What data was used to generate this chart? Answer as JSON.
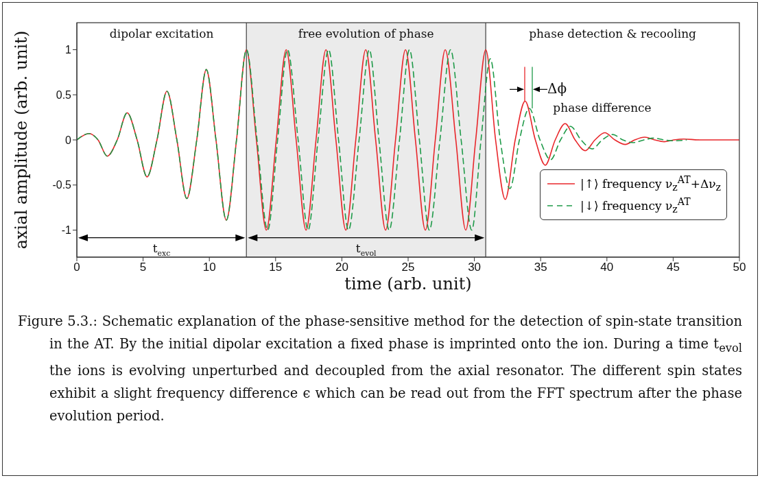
{
  "chart_data": {
    "type": "line",
    "xlabel": "time (arb. unit)",
    "ylabel": "axial amplitude (arb. unit)",
    "xlim": [
      0,
      50
    ],
    "xticks": [
      0,
      5,
      10,
      15,
      20,
      25,
      30,
      35,
      40,
      45,
      50
    ],
    "ylim": [
      -1.3,
      1.3
    ],
    "yticks": [
      -1,
      -0.5,
      0,
      0.5,
      1
    ],
    "grid": false,
    "legend": "right",
    "marker": "none",
    "series": [
      {
        "name": "|↑⟩ frequency ν$_{z}$$^{AT}$+Δν$_{z}$",
        "color": "#e8262a",
        "line_style": "solid",
        "x": [
          0,
          0.93,
          1.6,
          2.3,
          3.05,
          3.8,
          4.55,
          5.3,
          6.05,
          6.8,
          7.55,
          8.3,
          9.05,
          9.77,
          10.5,
          11.28,
          12.05,
          12.8,
          13.55,
          14.3,
          15.05,
          15.8,
          16.55,
          17.3,
          18.05,
          18.8,
          19.55,
          20.3,
          21.05,
          21.8,
          22.55,
          23.3,
          24.05,
          24.8,
          25.55,
          26.3,
          27.05,
          27.8,
          28.6,
          29.35,
          30.1,
          30.86,
          31.6,
          32.33,
          33.08,
          33.83,
          34.6,
          35.35,
          36.1,
          36.85,
          37.6,
          38.37,
          39.1,
          39.84,
          40.6,
          41.39,
          42.1,
          42.86,
          43.6,
          44.32,
          45.05,
          45.79,
          47,
          50
        ],
        "values": [
          0,
          0.07,
          0,
          -0.18,
          0,
          0.3,
          0,
          -0.41,
          0,
          0.54,
          0,
          -0.65,
          0,
          0.78,
          0,
          -0.89,
          0,
          1,
          0,
          -1,
          0,
          1,
          0,
          -1,
          0,
          1,
          0,
          -1,
          0,
          1,
          0,
          -1,
          0,
          1,
          0,
          -1,
          0,
          1,
          0,
          -1,
          0,
          1,
          0,
          -0.66,
          0,
          0.43,
          0,
          -0.28,
          0,
          0.18,
          0,
          -0.12,
          0,
          0.08,
          0,
          -0.05,
          0,
          0.03,
          0,
          -0.02,
          0,
          0.01,
          0,
          0
        ]
      },
      {
        "name": "|↓⟩ frequency ν$_{z}$$^{AT}$",
        "color": "#1e9a48",
        "line_style": "dashed",
        "x": [
          0,
          0.93,
          1.6,
          2.3,
          3.05,
          3.8,
          4.55,
          5.3,
          6.05,
          6.8,
          7.55,
          8.3,
          9.05,
          9.77,
          10.5,
          11.28,
          12.05,
          12.8,
          13.6,
          14.4,
          15.15,
          15.9,
          16.7,
          17.45,
          18.2,
          19,
          19.75,
          20.5,
          21.3,
          22.07,
          22.8,
          23.57,
          24.35,
          25.1,
          25.85,
          26.6,
          27.4,
          28.2,
          29,
          29.8,
          30.5,
          31.2,
          31.95,
          32.68,
          33.4,
          34.14,
          34.95,
          35.75,
          36.5,
          37.25,
          38.05,
          38.89,
          39.65,
          40.44,
          41.2,
          41.99,
          42.8,
          43.55,
          44.3,
          45.1,
          46
        ],
        "values": [
          0,
          0.07,
          0,
          -0.18,
          0,
          0.3,
          0,
          -0.41,
          0,
          0.54,
          0,
          -0.65,
          0,
          0.78,
          0,
          -0.89,
          0,
          1,
          0,
          -1,
          0,
          1,
          0,
          -1,
          0,
          1,
          0,
          -1,
          0,
          1,
          0,
          -1,
          0,
          1,
          0,
          -1,
          0,
          1,
          0,
          -1,
          0,
          0.9,
          0,
          -0.54,
          0,
          0.35,
          0,
          -0.22,
          0,
          0.15,
          0,
          -0.1,
          0,
          0.06,
          0,
          -0.03,
          0,
          0.02,
          0,
          -0.01,
          0
        ]
      }
    ],
    "bands": [
      {
        "axis": "x",
        "from": 0,
        "to": 12.8,
        "label": "dipolar excitation",
        "color": "#ffffff"
      },
      {
        "axis": "x",
        "from": 12.8,
        "to": 30.86,
        "label": "free evolution of phase",
        "color": "#ebebeb"
      },
      {
        "axis": "x",
        "from": 30.86,
        "to": 50,
        "label": "phase detection & recooling",
        "color": "#ffffff"
      }
    ],
    "annotations": [
      "t$_{exc}$",
      "t$_{evol}$",
      "Δϕ",
      "phase difference",
      "Figure 5.3.: Schematic explanation of the phase-sensitive method for the detection of spin-state transition in the AT. By the initial dipolar excitation a fixed phase is imprinted onto the ion. During a time t$_{evol}$ the ions is evolving unperturbed and decoupled from the axial resonator. The different spin states exhibit a slight frequency difference ϵ which can be read out from the FFT spectrum after the phase evolution period."
    ]
  }
}
